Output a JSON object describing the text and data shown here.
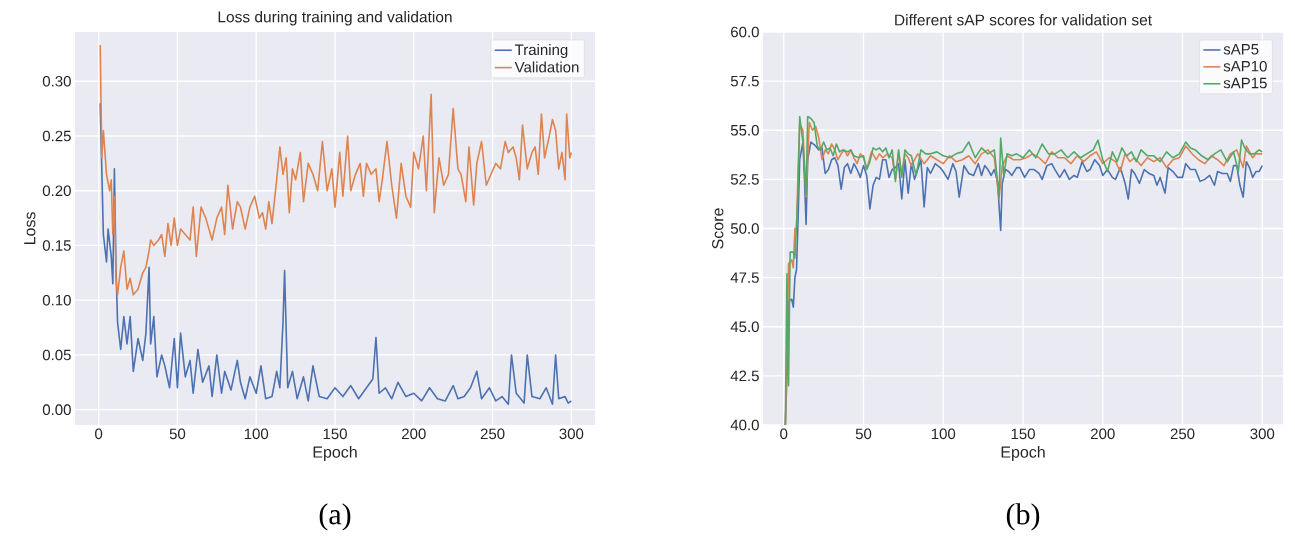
{
  "chart_data": [
    {
      "type": "line",
      "title": "Loss during training and validation",
      "xlabel": "Epoch",
      "ylabel": "Loss",
      "annotations": [
        "(a)"
      ],
      "xlim": [
        -15,
        315
      ],
      "ylim": [
        -0.014,
        0.345
      ],
      "xticks": [
        0,
        50,
        100,
        150,
        200,
        250,
        300
      ],
      "yticks": [
        {
          "value": 0,
          "label": "0.00"
        },
        {
          "value": 0.05,
          "label": "0.05"
        },
        {
          "value": 0.1,
          "label": "0.10"
        },
        {
          "value": 0.15,
          "label": "0.15"
        },
        {
          "value": 0.2,
          "label": "0.20"
        },
        {
          "value": 0.25,
          "label": "0.25"
        },
        {
          "value": 0.3,
          "label": "0.30"
        }
      ],
      "grid": true,
      "legend": "top right",
      "line_style": "solid",
      "series": [
        {
          "name": "Training",
          "color": "#4c72b0",
          "x": [
            1,
            3,
            5,
            6,
            8,
            9,
            10,
            11,
            12,
            14,
            16,
            18,
            20,
            22,
            25,
            28,
            30,
            32,
            33,
            35,
            37,
            40,
            42,
            45,
            48,
            50,
            52,
            55,
            58,
            60,
            63,
            66,
            70,
            72,
            75,
            78,
            80,
            84,
            88,
            90,
            93,
            96,
            100,
            103,
            106,
            110,
            113,
            115,
            117,
            118,
            120,
            123,
            126,
            130,
            133,
            136,
            140,
            145,
            150,
            155,
            160,
            165,
            170,
            174,
            176,
            178,
            182,
            186,
            190,
            195,
            200,
            205,
            210,
            215,
            220,
            225,
            228,
            232,
            236,
            240,
            243,
            248,
            252,
            256,
            260,
            262,
            265,
            270,
            272,
            275,
            280,
            284,
            288,
            290,
            292,
            296,
            298,
            300
          ],
          "values": [
            0.28,
            0.16,
            0.135,
            0.165,
            0.14,
            0.115,
            0.22,
            0.13,
            0.08,
            0.055,
            0.085,
            0.06,
            0.085,
            0.035,
            0.065,
            0.045,
            0.07,
            0.13,
            0.06,
            0.085,
            0.03,
            0.05,
            0.04,
            0.02,
            0.065,
            0.02,
            0.07,
            0.03,
            0.045,
            0.015,
            0.055,
            0.025,
            0.04,
            0.012,
            0.05,
            0.015,
            0.035,
            0.018,
            0.045,
            0.025,
            0.01,
            0.03,
            0.015,
            0.04,
            0.01,
            0.012,
            0.035,
            0.02,
            0.08,
            0.127,
            0.02,
            0.035,
            0.01,
            0.03,
            0.008,
            0.04,
            0.012,
            0.01,
            0.02,
            0.012,
            0.022,
            0.01,
            0.02,
            0.028,
            0.066,
            0.015,
            0.02,
            0.01,
            0.025,
            0.012,
            0.015,
            0.008,
            0.02,
            0.01,
            0.008,
            0.022,
            0.01,
            0.012,
            0.02,
            0.035,
            0.01,
            0.02,
            0.008,
            0.012,
            0.005,
            0.05,
            0.015,
            0.006,
            0.05,
            0.012,
            0.01,
            0.02,
            0.005,
            0.05,
            0.01,
            0.012,
            0.006,
            0.008
          ]
        },
        {
          "name": "Validation",
          "color": "#dd8452",
          "x": [
            1,
            2,
            3,
            5,
            7,
            8,
            9,
            10,
            11,
            12,
            14,
            16,
            18,
            20,
            22,
            25,
            28,
            30,
            32,
            33,
            35,
            38,
            40,
            42,
            44,
            46,
            48,
            50,
            52,
            55,
            58,
            60,
            62,
            65,
            68,
            70,
            72,
            75,
            78,
            80,
            82,
            85,
            88,
            90,
            93,
            96,
            99,
            102,
            104,
            106,
            108,
            110,
            113,
            115,
            117,
            119,
            121,
            123,
            125,
            128,
            130,
            133,
            136,
            139,
            142,
            145,
            148,
            150,
            153,
            155,
            158,
            160,
            163,
            166,
            168,
            170,
            173,
            176,
            178,
            180,
            183,
            186,
            189,
            192,
            195,
            198,
            200,
            203,
            206,
            208,
            211,
            213,
            216,
            219,
            222,
            225,
            228,
            230,
            233,
            235,
            238,
            240,
            243,
            246,
            249,
            252,
            255,
            258,
            260,
            263,
            265,
            267,
            269,
            272,
            275,
            277,
            279,
            281,
            283,
            286,
            288,
            290,
            292,
            294,
            296,
            297,
            299,
            300
          ],
          "values": [
            0.333,
            0.23,
            0.255,
            0.215,
            0.2,
            0.21,
            0.16,
            0.195,
            0.12,
            0.105,
            0.13,
            0.145,
            0.11,
            0.12,
            0.105,
            0.11,
            0.125,
            0.13,
            0.145,
            0.155,
            0.15,
            0.155,
            0.16,
            0.14,
            0.17,
            0.15,
            0.175,
            0.15,
            0.165,
            0.16,
            0.155,
            0.185,
            0.14,
            0.185,
            0.175,
            0.165,
            0.155,
            0.175,
            0.185,
            0.16,
            0.205,
            0.165,
            0.19,
            0.185,
            0.165,
            0.185,
            0.195,
            0.175,
            0.18,
            0.165,
            0.19,
            0.17,
            0.21,
            0.24,
            0.215,
            0.23,
            0.18,
            0.22,
            0.21,
            0.235,
            0.19,
            0.225,
            0.215,
            0.2,
            0.245,
            0.2,
            0.22,
            0.185,
            0.235,
            0.195,
            0.25,
            0.2,
            0.215,
            0.225,
            0.195,
            0.225,
            0.215,
            0.22,
            0.19,
            0.21,
            0.245,
            0.205,
            0.175,
            0.225,
            0.195,
            0.185,
            0.235,
            0.22,
            0.25,
            0.2,
            0.288,
            0.18,
            0.23,
            0.205,
            0.215,
            0.275,
            0.22,
            0.215,
            0.19,
            0.24,
            0.187,
            0.225,
            0.245,
            0.205,
            0.215,
            0.225,
            0.22,
            0.245,
            0.235,
            0.24,
            0.23,
            0.21,
            0.26,
            0.22,
            0.235,
            0.24,
            0.215,
            0.27,
            0.23,
            0.25,
            0.265,
            0.255,
            0.22,
            0.235,
            0.21,
            0.27,
            0.23,
            0.235
          ]
        }
      ]
    },
    {
      "type": "line",
      "title": "Different sAP scores for validation set",
      "xlabel": "Epoch",
      "ylabel": "Score",
      "annotations": [
        "(b)"
      ],
      "xlim": [
        -13,
        313
      ],
      "ylim": [
        40,
        60
      ],
      "xticks": [
        0,
        50,
        100,
        150,
        200,
        250,
        300
      ],
      "yticks": [
        {
          "value": 40,
          "label": "40.0"
        },
        42.5,
        {
          "value": 45,
          "label": "45.0"
        },
        47.5,
        {
          "value": 50,
          "label": "50.0"
        },
        52.5,
        {
          "value": 55,
          "label": "55.0"
        },
        57.5,
        {
          "value": 60,
          "label": "60.0"
        }
      ],
      "grid": true,
      "legend": "top right",
      "line_style": "solid",
      "series": [
        {
          "name": "sAP5",
          "color": "#4c72b0",
          "x": [
            1,
            2,
            3,
            5,
            6,
            7,
            8,
            9,
            10,
            12,
            13,
            14,
            15,
            17,
            20,
            22,
            24,
            26,
            28,
            30,
            32,
            34,
            36,
            38,
            40,
            42,
            44,
            46,
            48,
            50,
            52,
            54,
            56,
            58,
            60,
            62,
            64,
            66,
            68,
            70,
            72,
            74,
            76,
            78,
            80,
            82,
            84,
            86,
            88,
            90,
            92,
            95,
            98,
            100,
            103,
            106,
            108,
            110,
            113,
            116,
            119,
            122,
            124,
            126,
            128,
            130,
            132,
            134,
            136,
            137,
            139,
            141,
            143,
            146,
            148,
            151,
            154,
            157,
            160,
            162,
            165,
            168,
            170,
            173,
            176,
            179,
            182,
            184,
            187,
            190,
            192,
            195,
            198,
            200,
            203,
            206,
            208,
            211,
            214,
            216,
            218,
            220,
            223,
            226,
            229,
            232,
            234,
            236,
            239,
            241,
            244,
            247,
            250,
            252,
            255,
            258,
            261,
            264,
            267,
            270,
            272,
            275,
            278,
            280,
            282,
            284,
            286,
            288,
            290,
            292,
            294,
            296,
            298,
            300
          ],
          "values": [
            40.0,
            42.5,
            46.3,
            46.4,
            46.0,
            47.5,
            47.9,
            50.5,
            53.5,
            54.4,
            52.5,
            50.2,
            53.5,
            54.4,
            54.2,
            54.0,
            54.1,
            52.8,
            53.0,
            53.5,
            53.6,
            53.2,
            52.0,
            53.1,
            53.3,
            52.8,
            53.3,
            53.0,
            52.6,
            53.2,
            52.7,
            51.0,
            52.2,
            52.6,
            52.5,
            53.5,
            53.5,
            52.6,
            53.0,
            53.1,
            53.3,
            51.5,
            53.5,
            51.8,
            53.3,
            52.5,
            53.0,
            53.5,
            51.1,
            53.1,
            52.8,
            53.3,
            53.1,
            52.9,
            52.5,
            53.3,
            52.9,
            51.6,
            53.2,
            52.8,
            52.7,
            53.3,
            52.7,
            53.2,
            53.0,
            52.7,
            53.0,
            52.4,
            49.9,
            52.3,
            53.0,
            52.9,
            52.7,
            53.1,
            53.1,
            52.6,
            53.0,
            53.0,
            52.8,
            52.5,
            53.2,
            53.3,
            53.0,
            52.6,
            53.0,
            52.5,
            52.7,
            52.6,
            53.4,
            52.9,
            53.0,
            53.5,
            53.2,
            52.7,
            53.0,
            52.6,
            52.5,
            53.1,
            52.3,
            51.5,
            53.0,
            52.8,
            52.3,
            53.0,
            52.8,
            52.7,
            52.2,
            52.6,
            51.8,
            53.1,
            52.9,
            52.6,
            52.6,
            53.3,
            53.0,
            53.0,
            52.4,
            52.5,
            52.7,
            52.2,
            52.9,
            52.8,
            52.8,
            52.4,
            53.2,
            53.2,
            52.2,
            51.6,
            53.4,
            53.1,
            52.6,
            52.9,
            52.9,
            53.2
          ]
        },
        {
          "name": "sAP10",
          "color": "#dd8452",
          "x": [
            1,
            2,
            3,
            5,
            6,
            7,
            8,
            9,
            10,
            12,
            14,
            16,
            18,
            20,
            22,
            24,
            26,
            28,
            30,
            32,
            34,
            36,
            38,
            40,
            42,
            44,
            46,
            48,
            50,
            52,
            55,
            58,
            60,
            62,
            65,
            68,
            70,
            72,
            74,
            76,
            78,
            80,
            84,
            88,
            92,
            96,
            100,
            104,
            108,
            112,
            116,
            120,
            124,
            128,
            132,
            135,
            137,
            140,
            144,
            148,
            152,
            156,
            160,
            164,
            168,
            172,
            176,
            180,
            184,
            188,
            192,
            196,
            200,
            204,
            208,
            211,
            214,
            217,
            220,
            224,
            228,
            232,
            236,
            240,
            244,
            248,
            252,
            256,
            260,
            264,
            268,
            272,
            276,
            280,
            284,
            288,
            290,
            294,
            296,
            300
          ],
          "values": [
            40.0,
            43.5,
            48.2,
            48.4,
            48.0,
            50.0,
            50.0,
            53.0,
            55.3,
            55.0,
            51.6,
            55.4,
            55.0,
            55.2,
            54.6,
            53.5,
            54.0,
            53.8,
            54.3,
            54.0,
            53.5,
            53.8,
            54.0,
            53.7,
            54.0,
            53.6,
            53.3,
            53.8,
            53.6,
            53.0,
            53.9,
            53.5,
            53.8,
            53.6,
            53.8,
            53.6,
            52.5,
            53.9,
            52.7,
            53.8,
            53.6,
            53.2,
            53.8,
            53.3,
            53.7,
            53.5,
            53.3,
            53.7,
            53.4,
            53.5,
            53.7,
            53.3,
            53.8,
            54.0,
            53.6,
            51.5,
            53.2,
            53.7,
            53.5,
            53.5,
            53.6,
            53.8,
            53.6,
            53.3,
            53.9,
            53.6,
            53.6,
            53.3,
            53.7,
            53.4,
            53.7,
            53.9,
            53.3,
            53.6,
            53.4,
            52.9,
            53.8,
            53.4,
            53.6,
            53.2,
            53.6,
            53.4,
            53.6,
            53.1,
            53.5,
            53.6,
            54.2,
            53.8,
            53.5,
            53.3,
            53.7,
            53.5,
            53.2,
            53.8,
            54.0,
            53.1,
            54.2,
            53.6,
            53.8,
            53.8
          ]
        },
        {
          "name": "sAP15",
          "color": "#55a868",
          "x": [
            1,
            2,
            3,
            4,
            6,
            7,
            8,
            9,
            10,
            12,
            14,
            15,
            17,
            19,
            21,
            23,
            25,
            27,
            29,
            31,
            33,
            35,
            37,
            40,
            42,
            44,
            47,
            50,
            52,
            54,
            56,
            58,
            60,
            62,
            64,
            66,
            68,
            70,
            72,
            74,
            76,
            78,
            80,
            83,
            86,
            89,
            92,
            96,
            100,
            104,
            108,
            112,
            116,
            120,
            124,
            128,
            132,
            135,
            136,
            138,
            140,
            143,
            146,
            150,
            154,
            158,
            162,
            166,
            170,
            174,
            178,
            182,
            186,
            190,
            194,
            197,
            200,
            203,
            206,
            209,
            212,
            215,
            218,
            221,
            224,
            228,
            232,
            236,
            240,
            244,
            248,
            252,
            255,
            258,
            262,
            266,
            270,
            274,
            278,
            282,
            285,
            287,
            289,
            292,
            295,
            298,
            300
          ],
          "values": [
            40.0,
            47.7,
            42.0,
            48.8,
            48.8,
            48.5,
            50.2,
            52.0,
            55.7,
            54.4,
            51.7,
            55.7,
            55.6,
            55.4,
            54.2,
            54.0,
            54.4,
            54.0,
            54.1,
            53.7,
            54.3,
            53.9,
            54.0,
            53.9,
            54.0,
            53.7,
            53.6,
            53.7,
            53.0,
            53.4,
            54.1,
            54.0,
            54.1,
            53.9,
            54.1,
            53.6,
            54.0,
            52.4,
            54.0,
            52.6,
            54.0,
            53.8,
            53.7,
            52.7,
            54.0,
            53.8,
            53.8,
            53.9,
            53.7,
            53.6,
            53.8,
            53.9,
            54.4,
            53.6,
            54.1,
            53.8,
            54.0,
            51.6,
            54.6,
            52.7,
            53.8,
            53.7,
            53.8,
            53.6,
            54.0,
            53.6,
            54.3,
            53.8,
            53.8,
            54.0,
            53.6,
            53.9,
            53.6,
            53.8,
            54.0,
            54.5,
            53.5,
            52.9,
            53.9,
            53.4,
            54.1,
            53.7,
            53.9,
            53.4,
            54.0,
            53.7,
            53.7,
            53.4,
            53.9,
            53.6,
            53.8,
            54.4,
            54.1,
            54.0,
            53.7,
            53.5,
            53.8,
            54.0,
            53.4,
            53.9,
            52.9,
            54.5,
            54.1,
            53.8,
            53.8,
            54.0,
            53.9
          ]
        }
      ]
    }
  ]
}
